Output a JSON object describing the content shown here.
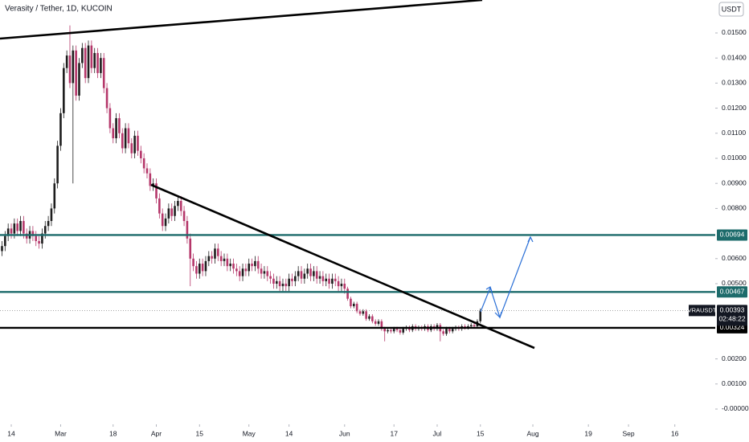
{
  "chart_data": {
    "type": "candlestick",
    "title": "Verasity / Tether, 1D, KUCOIN",
    "currency": "USDT",
    "up_color": "#1e1e1e",
    "down_color": "#b5376a",
    "open": [
      0.0063,
      0.0065,
      0.0069,
      0.0072,
      0.007,
      0.0074,
      0.0071,
      0.0075,
      0.007,
      0.0068,
      0.0071,
      0.0069,
      0.0067,
      0.0066,
      0.007,
      0.0073,
      0.0075,
      0.008,
      0.009,
      0.0105,
      0.0118,
      0.0136,
      0.0141,
      0.013,
      0.0143,
      0.0125,
      0.0138,
      0.0144,
      0.0132,
      0.0145,
      0.0136,
      0.0142,
      0.0134,
      0.014,
      0.0128,
      0.012,
      0.0112,
      0.0108,
      0.0116,
      0.011,
      0.0104,
      0.0112,
      0.0106,
      0.0102,
      0.0109,
      0.0103,
      0.01,
      0.0096,
      0.0094,
      0.0089,
      0.009,
      0.0084,
      0.0078,
      0.0073,
      0.0076,
      0.008,
      0.0077,
      0.0081,
      0.0083,
      0.0079,
      0.0075,
      0.0068,
      0.006,
      0.0057,
      0.0054,
      0.0058,
      0.0055,
      0.0059,
      0.0061,
      0.006,
      0.0064,
      0.0061,
      0.0059,
      0.006,
      0.0057,
      0.0058,
      0.0056,
      0.0055,
      0.0053,
      0.0056,
      0.0055,
      0.0058,
      0.0057,
      0.0059,
      0.0056,
      0.0054,
      0.0055,
      0.0053,
      0.0052,
      0.005,
      0.0051,
      0.0049,
      0.005,
      0.0049,
      0.0052,
      0.0051,
      0.0053,
      0.0055,
      0.0052,
      0.0054,
      0.0056,
      0.0053,
      0.0055,
      0.0052,
      0.0053,
      0.0051,
      0.0052,
      0.005,
      0.0052,
      0.0051,
      0.0049,
      0.005,
      0.0048,
      0.0044,
      0.0041,
      0.0042,
      0.0039,
      0.0038,
      0.0039,
      0.0036,
      0.0037,
      0.0035,
      0.0034,
      0.0035,
      0.0032,
      0.0031,
      0.00315,
      0.0031,
      0.0032,
      0.00315,
      0.00305,
      0.0032,
      0.00325,
      0.00315,
      0.0033,
      0.0032,
      0.00325,
      0.0032,
      0.0033,
      0.00315,
      0.0033,
      0.0032,
      0.00335,
      0.0031,
      0.003,
      0.0032,
      0.0031,
      0.0032,
      0.00325,
      0.0032,
      0.0033,
      0.00325,
      0.0033,
      0.00335,
      0.0033,
      0.0035
    ],
    "high": [
      0.0067,
      0.0071,
      0.0074,
      0.0074,
      0.0076,
      0.0076,
      0.0077,
      0.0077,
      0.0072,
      0.0073,
      0.0073,
      0.0071,
      0.0069,
      0.0072,
      0.0075,
      0.0077,
      0.0082,
      0.0092,
      0.0107,
      0.012,
      0.0138,
      0.0143,
      0.0153,
      0.0145,
      0.0145,
      0.014,
      0.0146,
      0.0146,
      0.0147,
      0.0147,
      0.0144,
      0.0144,
      0.0142,
      0.0142,
      0.013,
      0.0122,
      0.0114,
      0.0118,
      0.0118,
      0.0112,
      0.0114,
      0.0114,
      0.0108,
      0.0111,
      0.0111,
      0.0105,
      0.0102,
      0.0098,
      0.0096,
      0.0092,
      0.0092,
      0.0086,
      0.008,
      0.0078,
      0.0082,
      0.0082,
      0.0083,
      0.0085,
      0.0085,
      0.0081,
      0.0077,
      0.007,
      0.0062,
      0.0059,
      0.006,
      0.006,
      0.0061,
      0.0063,
      0.0063,
      0.0066,
      0.0066,
      0.0063,
      0.0062,
      0.0062,
      0.006,
      0.006,
      0.0058,
      0.0057,
      0.0058,
      0.0058,
      0.006,
      0.006,
      0.0061,
      0.0061,
      0.0058,
      0.0057,
      0.0057,
      0.0055,
      0.0054,
      0.0053,
      0.0053,
      0.0052,
      0.0052,
      0.0054,
      0.0054,
      0.0055,
      0.0057,
      0.0057,
      0.0056,
      0.0058,
      0.0058,
      0.0057,
      0.0057,
      0.0055,
      0.0055,
      0.0054,
      0.0054,
      0.0054,
      0.0054,
      0.0053,
      0.0052,
      0.0052,
      0.00488,
      0.00448,
      0.00428,
      0.00428,
      0.00398,
      0.00398,
      0.00398,
      0.00378,
      0.00378,
      0.00358,
      0.00358,
      0.00358,
      0.00328,
      0.00323,
      0.00323,
      0.00328,
      0.00328,
      0.00323,
      0.00328,
      0.00333,
      0.00333,
      0.00338,
      0.00338,
      0.00333,
      0.00333,
      0.00338,
      0.00338,
      0.00338,
      0.00338,
      0.00343,
      0.00343,
      0.00318,
      0.00328,
      0.00328,
      0.00328,
      0.00333,
      0.00333,
      0.00338,
      0.00338,
      0.00338,
      0.00343,
      0.00343,
      0.00358,
      0.00401
    ],
    "low": [
      0.0061,
      0.0063,
      0.0067,
      0.0068,
      0.0068,
      0.0069,
      0.0069,
      0.0068,
      0.0066,
      0.0066,
      0.0067,
      0.0065,
      0.0064,
      0.0064,
      0.0068,
      0.0071,
      0.0073,
      0.0078,
      0.0088,
      0.0103,
      0.0116,
      0.0134,
      0.0128,
      0.009,
      0.0123,
      0.0123,
      0.0136,
      0.013,
      0.013,
      0.0134,
      0.0134,
      0.0132,
      0.0132,
      0.0126,
      0.0118,
      0.011,
      0.0106,
      0.0106,
      0.0108,
      0.0102,
      0.0102,
      0.0104,
      0.01,
      0.01,
      0.0101,
      0.0098,
      0.0094,
      0.0092,
      0.0087,
      0.0087,
      0.0082,
      0.0076,
      0.0071,
      0.0071,
      0.0074,
      0.0075,
      0.0075,
      0.0079,
      0.0077,
      0.0073,
      0.0066,
      0.0049,
      0.0055,
      0.0052,
      0.0052,
      0.0053,
      0.0053,
      0.0057,
      0.0058,
      0.0058,
      0.0059,
      0.0057,
      0.0057,
      0.0055,
      0.0055,
      0.0054,
      0.0053,
      0.0051,
      0.0051,
      0.0053,
      0.0053,
      0.0055,
      0.0055,
      0.0054,
      0.0052,
      0.0052,
      0.0051,
      0.005,
      0.0048,
      0.0048,
      0.0047,
      0.0047,
      0.0047,
      0.0047,
      0.0049,
      0.0049,
      0.0051,
      0.005,
      0.005,
      0.0052,
      0.0051,
      0.0051,
      0.005,
      0.005,
      0.0049,
      0.0049,
      0.0048,
      0.0048,
      0.0049,
      0.0047,
      0.0047,
      0.0046,
      0.00432,
      0.00402,
      0.00402,
      0.00382,
      0.00372,
      0.00372,
      0.00352,
      0.00352,
      0.00342,
      0.00332,
      0.00332,
      0.00312,
      0.0027,
      0.00302,
      0.00302,
      0.00302,
      0.00307,
      0.00297,
      0.00297,
      0.00312,
      0.00307,
      0.00307,
      0.00312,
      0.00312,
      0.00312,
      0.00312,
      0.00307,
      0.00307,
      0.00312,
      0.00312,
      0.0027,
      0.00292,
      0.00292,
      0.00302,
      0.00302,
      0.00312,
      0.00312,
      0.00312,
      0.00317,
      0.00317,
      0.00322,
      0.00322,
      0.00322,
      0.00342
    ],
    "close": [
      0.0065,
      0.0069,
      0.0072,
      0.007,
      0.0074,
      0.0071,
      0.0075,
      0.007,
      0.0068,
      0.0071,
      0.0069,
      0.0067,
      0.0066,
      0.007,
      0.0073,
      0.0075,
      0.008,
      0.009,
      0.0105,
      0.0118,
      0.0136,
      0.0141,
      0.013,
      0.0143,
      0.0125,
      0.0138,
      0.0144,
      0.0132,
      0.0145,
      0.0136,
      0.0142,
      0.0134,
      0.014,
      0.0128,
      0.012,
      0.0112,
      0.0108,
      0.0116,
      0.011,
      0.0104,
      0.0112,
      0.0106,
      0.0102,
      0.0109,
      0.0103,
      0.01,
      0.0096,
      0.0094,
      0.0089,
      0.009,
      0.0084,
      0.0078,
      0.0073,
      0.0076,
      0.008,
      0.0077,
      0.0081,
      0.0083,
      0.0079,
      0.0075,
      0.0068,
      0.006,
      0.0057,
      0.0054,
      0.0058,
      0.0055,
      0.0059,
      0.0061,
      0.006,
      0.0064,
      0.0061,
      0.0059,
      0.006,
      0.0057,
      0.0058,
      0.0056,
      0.0055,
      0.0053,
      0.0056,
      0.0055,
      0.0058,
      0.0057,
      0.0059,
      0.0056,
      0.0054,
      0.0055,
      0.0053,
      0.0052,
      0.005,
      0.0051,
      0.0049,
      0.005,
      0.0049,
      0.0052,
      0.0051,
      0.0053,
      0.0055,
      0.0052,
      0.0054,
      0.0056,
      0.0053,
      0.0055,
      0.0052,
      0.0053,
      0.0051,
      0.0052,
      0.005,
      0.0052,
      0.0051,
      0.0049,
      0.005,
      0.0048,
      0.0044,
      0.0041,
      0.0042,
      0.0039,
      0.0038,
      0.0039,
      0.0036,
      0.0037,
      0.0035,
      0.0034,
      0.0035,
      0.0032,
      0.0031,
      0.00315,
      0.0031,
      0.0032,
      0.00315,
      0.00305,
      0.0032,
      0.00325,
      0.00315,
      0.0033,
      0.0032,
      0.00325,
      0.0032,
      0.0033,
      0.00315,
      0.0033,
      0.0032,
      0.00335,
      0.0031,
      0.003,
      0.0032,
      0.0031,
      0.0032,
      0.00325,
      0.0032,
      0.0033,
      0.00325,
      0.0033,
      0.00335,
      0.0033,
      0.0035,
      0.00393
    ],
    "xlim": [
      -0.65,
      231.1
    ],
    "xticks": [
      {
        "value": 3,
        "label": "14"
      },
      {
        "value": 19,
        "label": "Mar"
      },
      {
        "value": 36,
        "label": "18"
      },
      {
        "value": 50,
        "label": "Apr"
      },
      {
        "value": 64,
        "label": "15"
      },
      {
        "value": 80,
        "label": "May"
      },
      {
        "value": 93,
        "label": "14"
      },
      {
        "value": 111,
        "label": "Jun"
      },
      {
        "value": 127,
        "label": "17"
      },
      {
        "value": 141,
        "label": "Jul"
      },
      {
        "value": 155,
        "label": "15"
      },
      {
        "value": 172,
        "label": "Aug"
      },
      {
        "value": 190,
        "label": "19"
      },
      {
        "value": 203,
        "label": "Sep"
      },
      {
        "value": 218,
        "label": "16"
      }
    ],
    "ylim": [
      -0.000513,
      0.016314
    ],
    "yticks": [
      {
        "value": 0.015,
        "label": "0.01500"
      },
      {
        "value": 0.014,
        "label": "0.01400"
      },
      {
        "value": 0.013,
        "label": "0.01300"
      },
      {
        "value": 0.012,
        "label": "0.01200"
      },
      {
        "value": 0.011,
        "label": "0.01100"
      },
      {
        "value": 0.01,
        "label": "0.01000"
      },
      {
        "value": 0.009,
        "label": "0.00900"
      },
      {
        "value": 0.008,
        "label": "0.00800"
      },
      {
        "value": 0.006,
        "label": "0.00600"
      },
      {
        "value": 0.005,
        "label": "0.00500"
      },
      {
        "value": 0.002,
        "label": "0.00200"
      },
      {
        "value": 0.001,
        "label": "0.00100"
      },
      {
        "value": 0,
        "label": "-0.00000"
      }
    ],
    "levels": [
      {
        "value": 0.00694,
        "label": "0.00694",
        "color": "#1d6b6b"
      },
      {
        "value": 0.00467,
        "label": "0.00467",
        "color": "#1d6b6b"
      },
      {
        "value": 0.00324,
        "label": "0.00324",
        "color": "#000000"
      }
    ],
    "last_price": {
      "name": "VRAUSDT",
      "value": 0.00393,
      "label": "0.00393",
      "countdown": "02:48:22"
    }
  }
}
